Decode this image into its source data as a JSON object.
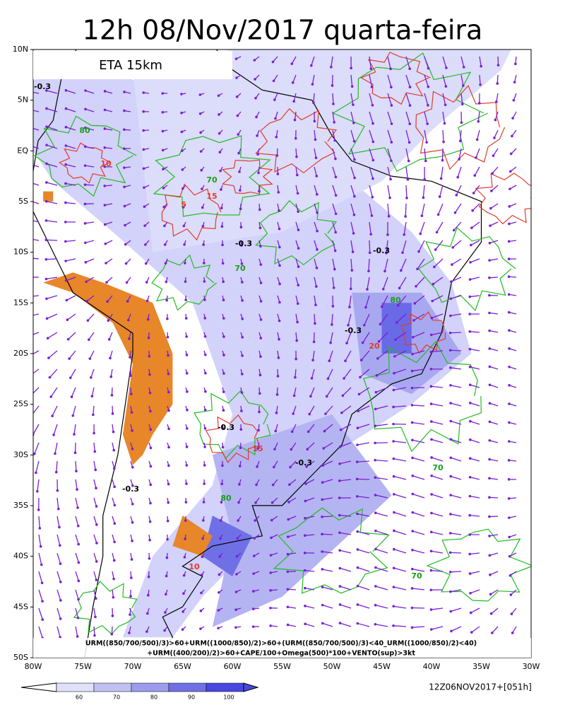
{
  "header": {
    "title": "12h 08/Nov/2017 quarta-feira"
  },
  "map": {
    "model_label": "ETA 15km",
    "lat_labels": [
      "10N",
      "5N",
      "EQ",
      "5S",
      "10S",
      "15S",
      "20S",
      "25S",
      "30S",
      "35S",
      "40S",
      "45S",
      "50S"
    ],
    "lon_labels": [
      "80W",
      "75W",
      "70W",
      "65W",
      "60W",
      "55W",
      "50W",
      "45W",
      "40W",
      "35W",
      "30W"
    ],
    "contour_labels": [
      "-0.3",
      "80",
      "10",
      "5",
      "15",
      "70",
      "-0.3",
      "-0.3",
      "70",
      "80",
      "-0.3",
      "20",
      "-0.3",
      "-0.3",
      "-0.3",
      "70",
      "80",
      "70",
      "10",
      "15"
    ],
    "formula": [
      "URM((850/700/500)/3)>60+URM((1000/850)/2)>60+(URM((850/700/500)/3)<40_URM((1000/850)/2)<40)",
      "+URM((400/200)/2)>60+CAPE/100+Omega(500)*100+VENTO(sup)>3kt"
    ]
  },
  "colorbar": {
    "labels": [
      "60",
      "70",
      "80",
      "90",
      "100"
    ]
  },
  "footer": {
    "run": "12Z06NOV2017+[051h]"
  }
}
